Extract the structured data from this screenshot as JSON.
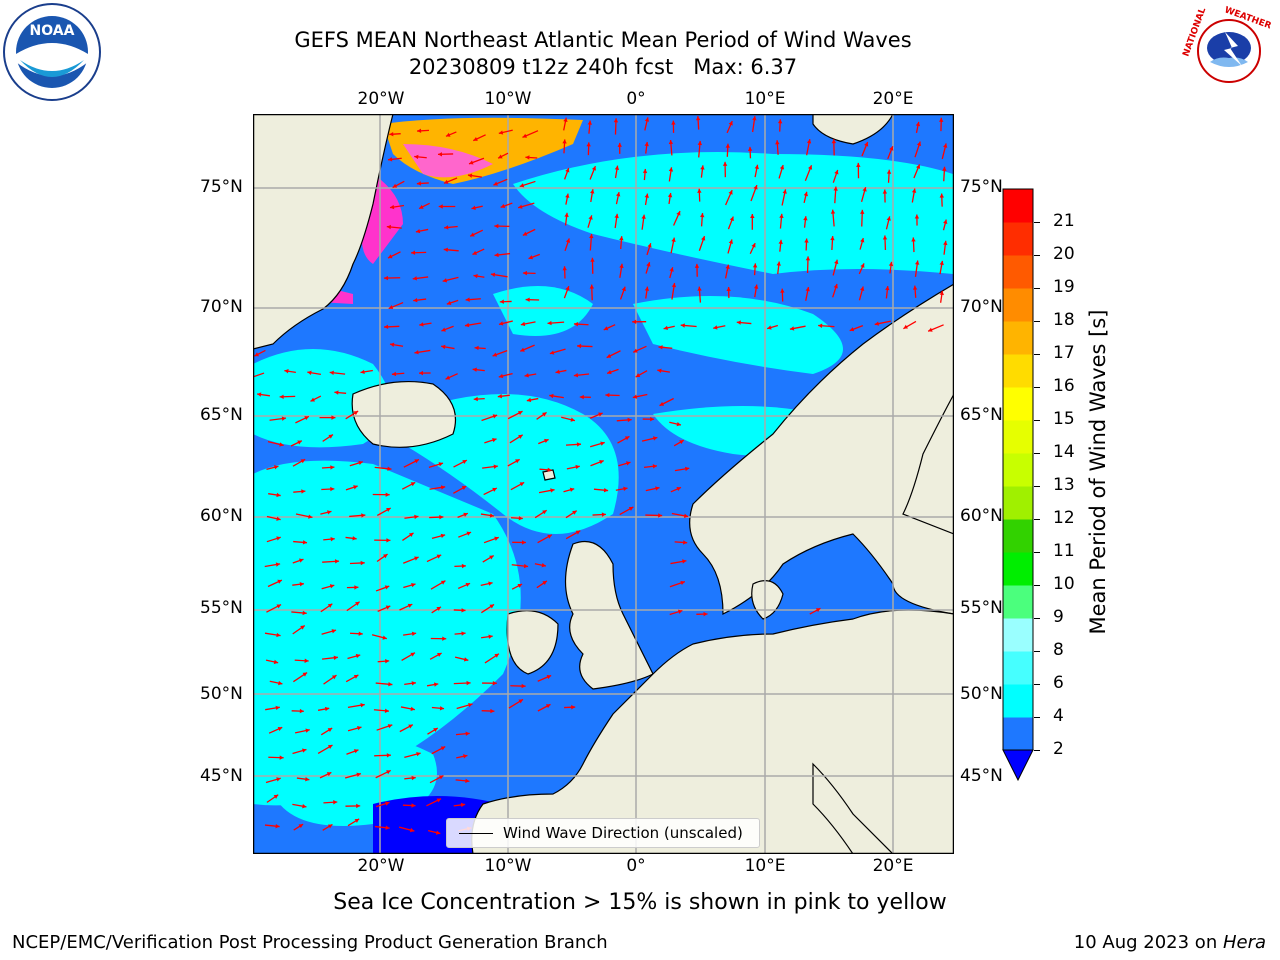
{
  "title_line1": "GEFS MEAN Northeast Atlantic Mean Period of Wind Waves",
  "title_line2": "20230809 t12z 240h fcst   Max: 6.37",
  "ice_note": "Sea Ice Concentration > 15% is shown in pink to yellow",
  "footer_left": "NCEP/EMC/Verification Post Processing Product Generation Branch",
  "footer_date": "10 Aug 2023 on ",
  "footer_machine": "Hera",
  "legend_label": "Wind Wave Direction (unscaled)",
  "colorbar": {
    "label": "Mean Period of Wind Waves [s]",
    "ticks": [
      "2",
      "4",
      "6",
      "8",
      "9",
      "10",
      "11",
      "12",
      "13",
      "14",
      "15",
      "16",
      "17",
      "18",
      "19",
      "20",
      "21"
    ],
    "colors": [
      "#1e78ff",
      "#00ffff",
      "#46ffff",
      "#9affff",
      "#4bff7d",
      "#00ee00",
      "#32d200",
      "#a0f000",
      "#c8ff00",
      "#e6ff00",
      "#ffff00",
      "#ffdc00",
      "#ffb400",
      "#ff8c00",
      "#ff5a00",
      "#ff2d00",
      "#ff0000"
    ],
    "underflow_color": "#0000ff"
  },
  "lat_labels": [
    "75°N",
    "70°N",
    "65°N",
    "60°N",
    "55°N",
    "50°N",
    "45°N"
  ],
  "lon_labels": [
    "20°W",
    "10°W",
    "0°",
    "10°E",
    "20°E"
  ],
  "logos": {
    "noaa": "NOAA",
    "nws": "NATIONAL WEATHER SERVICE"
  },
  "colors": {
    "ocean_deep": "#1e78ff",
    "ocean_cyan": "#00ffff",
    "land": "#eeeedd",
    "arrow": "#ff0000",
    "grid": "#aaaaaa"
  }
}
